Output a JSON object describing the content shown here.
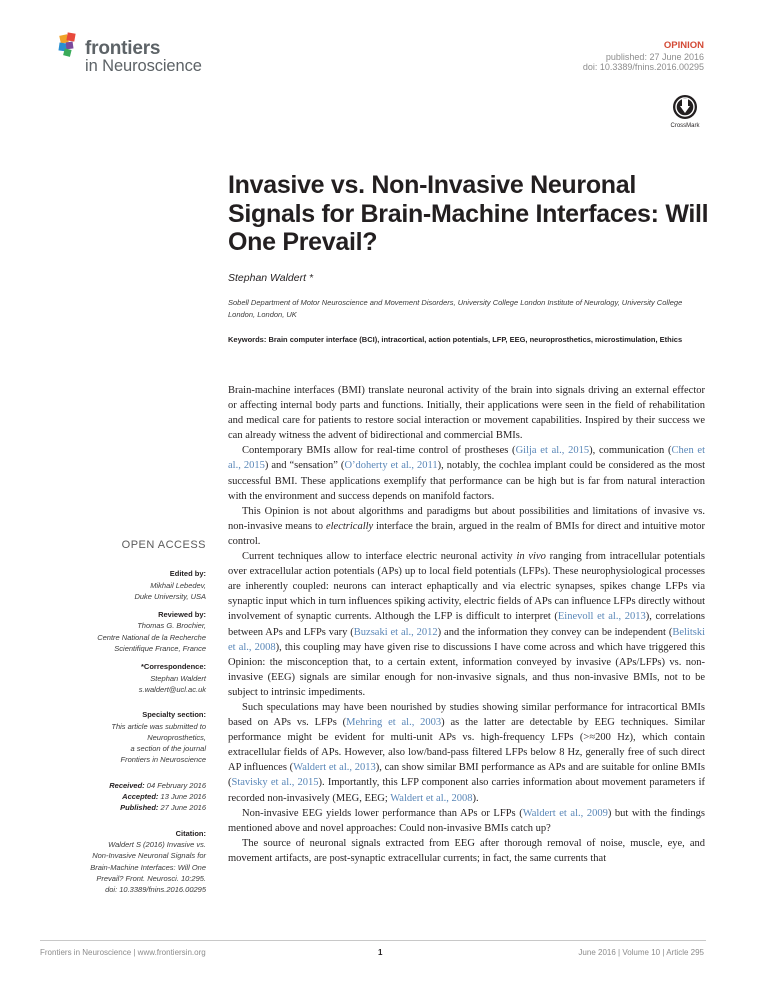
{
  "header": {
    "journal_brand": "frontiers",
    "journal_name": "in Neuroscience",
    "article_type": "OPINION",
    "published": "published: 27 June 2016",
    "doi": "doi: 10.3389/fnins.2016.00295",
    "crossmark_label": "CrossMark"
  },
  "title": "Invasive vs. Non-Invasive Neuronal Signals for Brain-Machine Interfaces: Will One Prevail?",
  "author": "Stephan Waldert *",
  "affiliation": "Sobell Department of Motor Neuroscience and Movement Disorders, University College London Institute of Neurology, University College London, London, UK",
  "keywords_label": "Keywords:",
  "keywords": "Brain computer interface (BCI), intracortical, action potentials, LFP, EEG, neuroprosthetics, microstimulation, Ethics",
  "sidebar": {
    "open_access": "OPEN ACCESS",
    "edited_by_label": "Edited by:",
    "editor_name": "Mikhail Lebedev,",
    "editor_affiliation": "Duke University, USA",
    "reviewed_by_label": "Reviewed by:",
    "reviewer_name": "Thomas G. Brochier,",
    "reviewer_affiliation_1": "Centre National de la Recherche",
    "reviewer_affiliation_2": "Scientifique France, France",
    "correspondence_label": "*Correspondence:",
    "correspondence_name": "Stephan Waldert",
    "correspondence_email": "s.waldert@ucl.ac.uk",
    "specialty_label": "Specialty section:",
    "specialty_lines": [
      "This article was submitted to",
      "Neuroprosthetics,",
      "a section of the journal",
      "Frontiers in Neuroscience"
    ],
    "received_label": "Received:",
    "received_date": "04 February 2016",
    "accepted_label": "Accepted:",
    "accepted_date": "13 June 2016",
    "published_label": "Published:",
    "published_date": "27 June 2016",
    "citation_label": "Citation:",
    "citation_lines": [
      "Waldert S (2016) Invasive vs.",
      "Non-Invasive Neuronal Signals for",
      "Brain-Machine Interfaces: Will One",
      "Prevail? Front. Neurosci. 10:295.",
      "doi: 10.3389/fnins.2016.00295"
    ]
  },
  "body": {
    "p1": "Brain-machine interfaces (BMI) translate neuronal activity of the brain into signals driving an external effector or affecting internal body parts and functions. Initially, their applications were seen in the field of rehabilitation and medical care for patients to restore social interaction or movement capabilities. Inspired by their success we can already witness the advent of bidirectional and commercial BMIs.",
    "p2": [
      {
        "t": "Contemporary BMIs allow for real-time control of prostheses ("
      },
      {
        "t": "Gilja et al., 2015",
        "c": 1
      },
      {
        "t": "), communication ("
      },
      {
        "t": "Chen et al., 2015",
        "c": 1
      },
      {
        "t": ") and “sensation” ("
      },
      {
        "t": "O’doherty et al., 2011",
        "c": 1
      },
      {
        "t": "), notably, the cochlea implant could be considered as the most successful BMI. These applications exemplify that performance can be high but is far from natural interaction with the environment and success depends on manifold factors."
      }
    ],
    "p3": [
      {
        "t": "This Opinion is not about algorithms and paradigms but about possibilities and limitations of invasive vs. non-invasive means to "
      },
      {
        "t": "electrically",
        "i": 1
      },
      {
        "t": " interface the brain, argued in the realm of BMIs for direct and intuitive motor control."
      }
    ],
    "p4": [
      {
        "t": "Current techniques allow to interface electric neuronal activity "
      },
      {
        "t": "in vivo",
        "i": 1
      },
      {
        "t": " ranging from intracellular potentials over extracellular action potentials (APs) up to local field potentials (LFPs). These neurophysiological processes are inherently coupled: neurons can interact ephaptically and via electric synapses, spikes change LFPs via synaptic input which in turn influences spiking activity, electric fields of APs can influence LFPs directly without involvement of synaptic currents. Although the LFP is difficult to interpret ("
      },
      {
        "t": "Einevoll et al., 2013",
        "c": 1
      },
      {
        "t": "), correlations between APs and LFPs vary ("
      },
      {
        "t": "Buzsaki et al., 2012",
        "c": 1
      },
      {
        "t": ") and the information they convey can be independent ("
      },
      {
        "t": "Belitski et al., 2008",
        "c": 1
      },
      {
        "t": "), this coupling may have given rise to discussions I have come across and which have triggered this Opinion: the misconception that, to a certain extent, information conveyed by invasive (APs/LFPs) vs. non-invasive (EEG) signals are similar enough for non-invasive signals, and thus non-invasive BMIs, not to be subject to intrinsic impediments."
      }
    ],
    "p5": [
      {
        "t": "Such speculations may have been nourished by studies showing similar performance for intracortical BMIs based on APs vs. LFPs ("
      },
      {
        "t": "Mehring et al., 2003",
        "c": 1
      },
      {
        "t": ") as the latter are detectable by EEG techniques. Similar performance might be evident for multi-unit APs vs. high-frequency LFPs (>≈200 Hz), which contain extracellular fields of APs. However, also low/band-pass filtered LFPs below 8 Hz, generally free of such direct AP influences ("
      },
      {
        "t": "Waldert et al., 2013",
        "c": 1
      },
      {
        "t": "), can show similar BMI performance as APs and are suitable for online BMIs ("
      },
      {
        "t": "Stavisky et al., 2015",
        "c": 1
      },
      {
        "t": "). Importantly, this LFP component also carries information about movement parameters if recorded non-invasively (MEG, EEG; "
      },
      {
        "t": "Waldert et al., 2008",
        "c": 1
      },
      {
        "t": ")."
      }
    ],
    "p6": [
      {
        "t": "Non-invasive EEG yields lower performance than APs or LFPs ("
      },
      {
        "t": "Waldert et al., 2009",
        "c": 1
      },
      {
        "t": ") but with the findings mentioned above and novel approaches: Could non-invasive BMIs catch up?"
      }
    ],
    "p7": "The source of neuronal signals extracted from EEG after thorough removal of noise, muscle, eye, and movement artifacts, are post-synaptic extracellular currents; in fact, the same currents that"
  },
  "footer": {
    "left": "Frontiers in Neuroscience | www.frontiersin.org",
    "page": "1",
    "right": "June 2016 | Volume 10 | Article 295"
  },
  "colors": {
    "accent_red": "#d34a35",
    "citation_blue": "#5a87b8",
    "logo_gray": "#5d6367"
  }
}
